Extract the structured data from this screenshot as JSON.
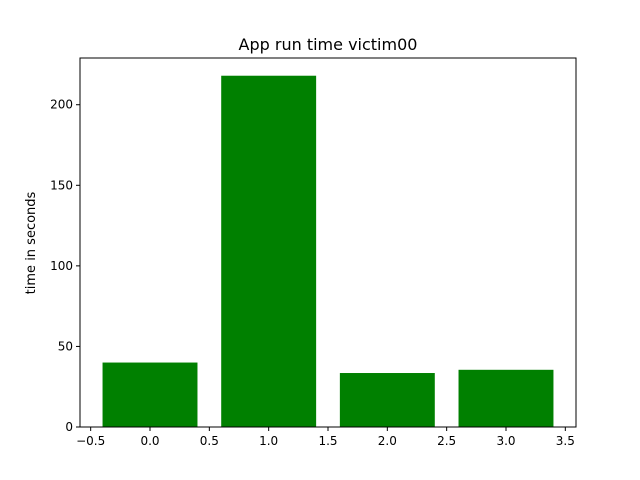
{
  "chart_data": {
    "type": "bar",
    "title": "App run time victim00",
    "xlabel": "",
    "ylabel": "time in seconds",
    "x": [
      0,
      1,
      2,
      3
    ],
    "values": [
      40,
      218,
      33.5,
      35.5
    ],
    "bar_width": 0.8,
    "bar_color": "#008000",
    "xlim": [
      -0.59,
      3.59
    ],
    "ylim": [
      0,
      229
    ],
    "xticks": [
      -0.5,
      0.0,
      0.5,
      1.0,
      1.5,
      2.0,
      2.5,
      3.0,
      3.5
    ],
    "xtick_labels": [
      "−0.5",
      "0.0",
      "0.5",
      "1.0",
      "1.5",
      "2.0",
      "2.5",
      "3.0",
      "3.5"
    ],
    "yticks": [
      0,
      50,
      100,
      150,
      200
    ],
    "ytick_labels": [
      "0",
      "50",
      "100",
      "150",
      "200"
    ],
    "grid": false,
    "legend": false
  }
}
